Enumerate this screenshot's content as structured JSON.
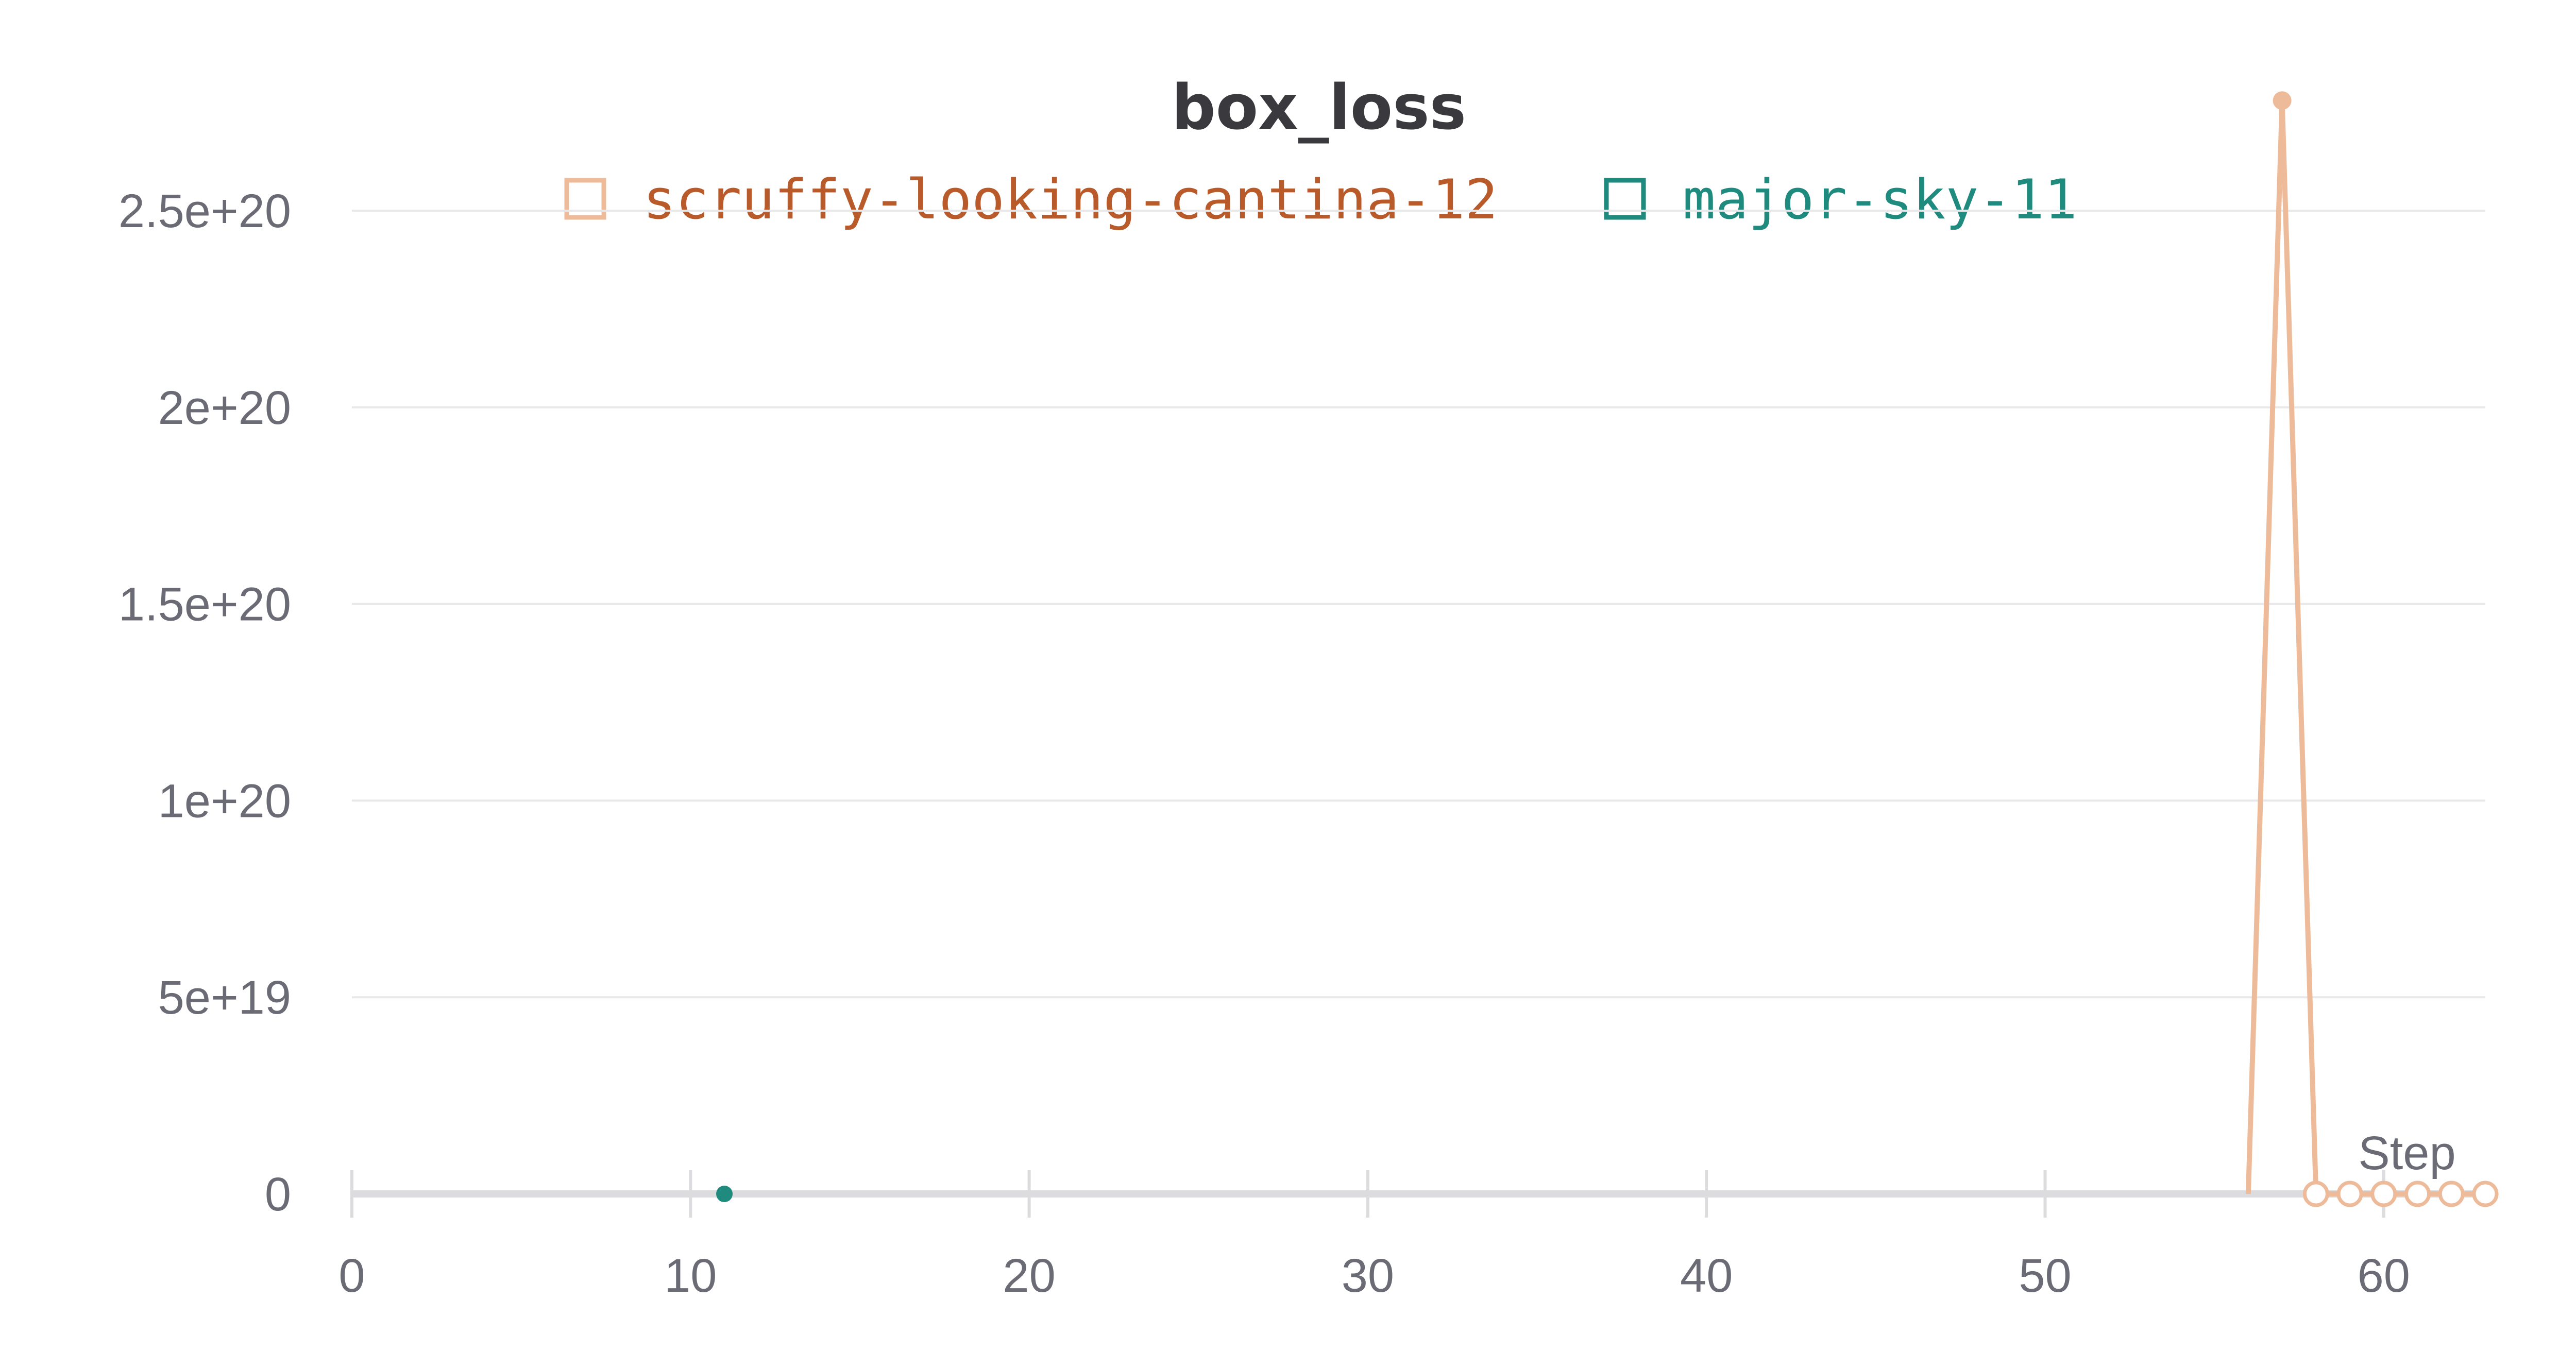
{
  "chart_data": {
    "type": "line",
    "title": "box_loss",
    "xlabel": "Step",
    "ylabel": "",
    "xlim": [
      0,
      63
    ],
    "ylim": [
      0,
      2.8e+20
    ],
    "x_ticks": [
      0,
      10,
      20,
      30,
      40,
      50,
      60
    ],
    "x_tick_labels": [
      "0",
      "10",
      "20",
      "30",
      "40",
      "50",
      "60"
    ],
    "y_ticks": [
      0,
      5e+19,
      1e+20,
      1.5e+20,
      2e+20,
      2.5e+20
    ],
    "y_tick_labels": [
      "0",
      "5e+19",
      "1e+20",
      "1.5e+20",
      "2e+20",
      "2.5e+20"
    ],
    "grid": true,
    "legend_position": "top-center",
    "series": [
      {
        "name": "scruffy-looking-cantina-12",
        "color": "#eebb9a",
        "text_color": "#b85a2a",
        "points": [
          {
            "x": 56,
            "y": 0
          },
          {
            "x": 57,
            "y": 2.78e+20
          },
          {
            "x": 58,
            "y": 0
          },
          {
            "x": 59,
            "y": 0
          },
          {
            "x": 60,
            "y": 0
          },
          {
            "x": 61,
            "y": 0
          },
          {
            "x": 62,
            "y": 0
          },
          {
            "x": 63,
            "y": 0
          }
        ]
      },
      {
        "name": "major-sky-11",
        "color": "#1f8a7e",
        "text_color": "#1f8a7e",
        "points": [
          {
            "x": 11,
            "y": 0
          }
        ]
      }
    ]
  }
}
